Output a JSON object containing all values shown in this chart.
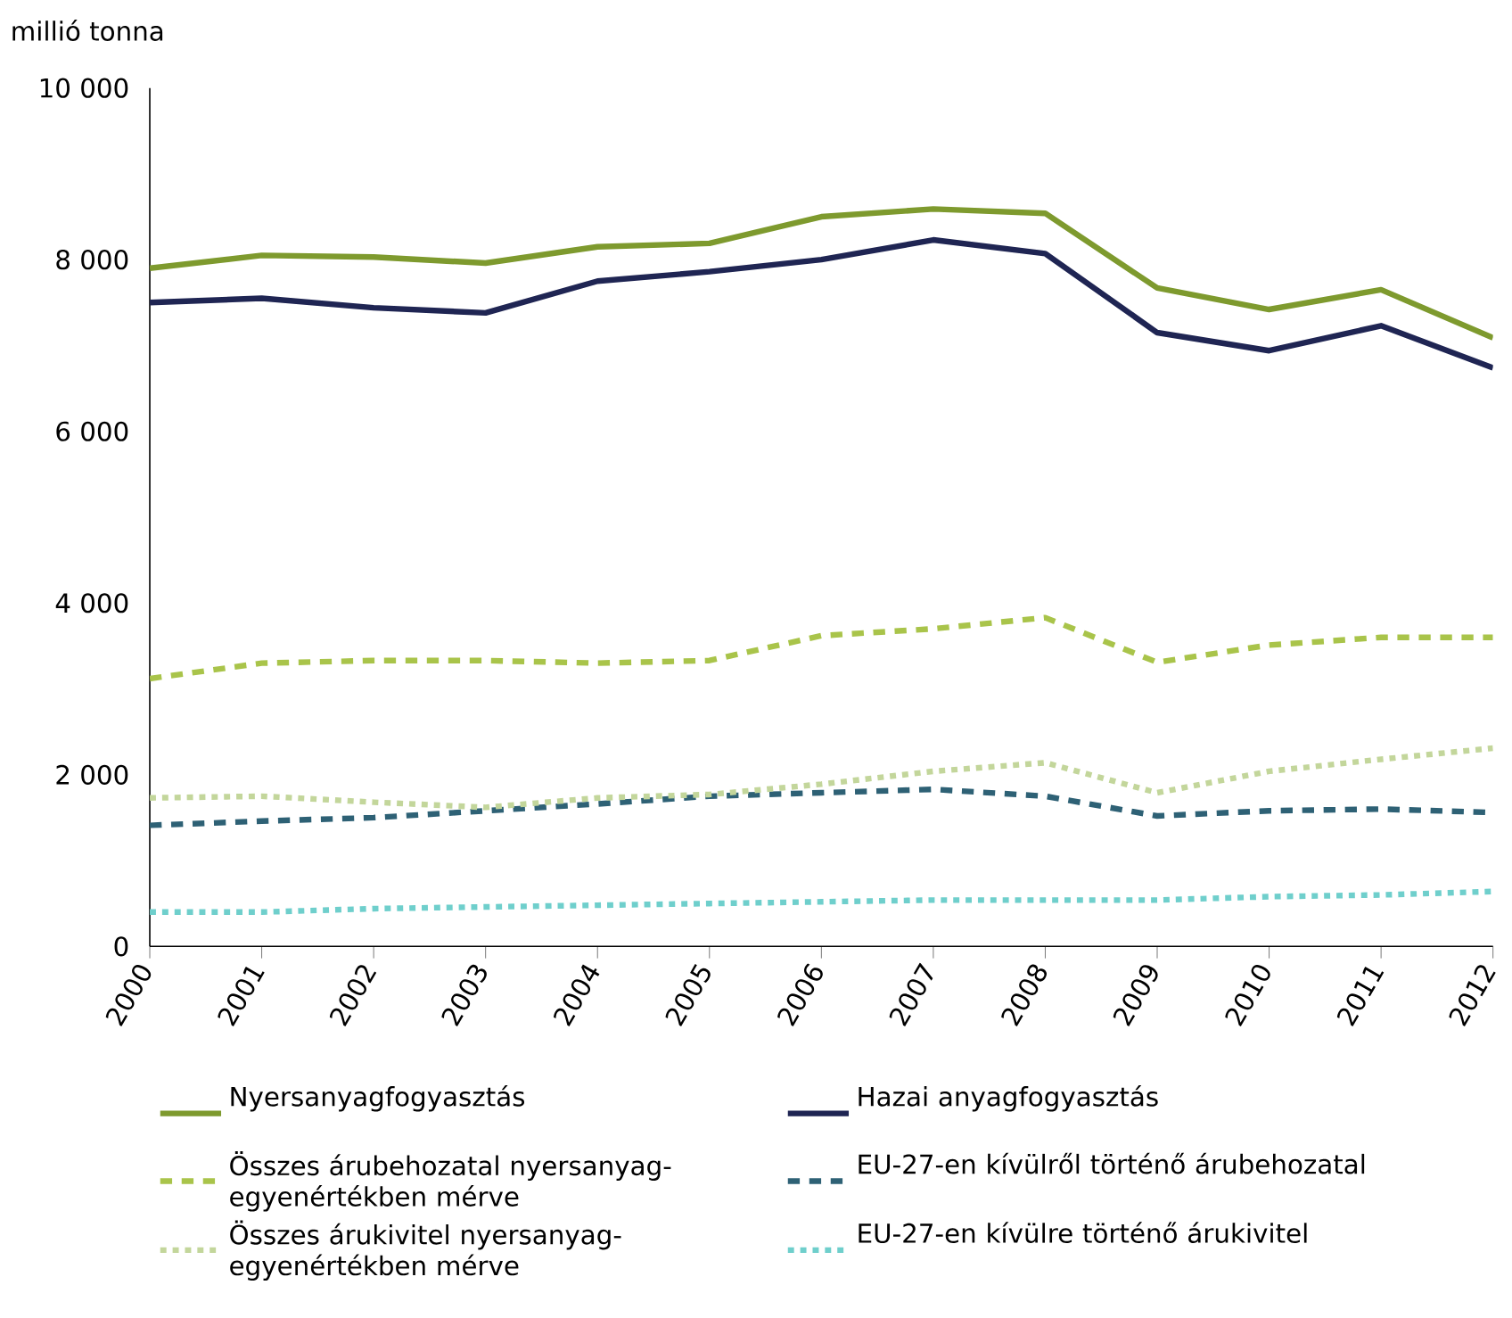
{
  "chart_data": {
    "type": "line",
    "ylabel": "millió tonna",
    "x": [
      2000,
      2001,
      2002,
      2003,
      2004,
      2005,
      2006,
      2007,
      2008,
      2009,
      2010,
      2011,
      2012
    ],
    "xlim": [
      2000,
      2012
    ],
    "xticks": [
      2000,
      2001,
      2002,
      2003,
      2004,
      2005,
      2006,
      2007,
      2008,
      2009,
      2010,
      2011,
      2012
    ],
    "ylim": [
      0,
      10000
    ],
    "yticks": [
      0,
      {
        "value": 2000,
        "label": "2 000"
      },
      {
        "value": 4000,
        "label": "4 000"
      },
      {
        "value": 6000,
        "label": "6 000"
      },
      {
        "value": 8000,
        "label": "8 000"
      },
      {
        "value": 10000,
        "label": "10 000"
      }
    ],
    "grid": false,
    "legend": "bottom",
    "marker": "none",
    "series": [
      {
        "name": "Nyersanyagfogyasztás",
        "color": "#7e9a2e",
        "line_style": "solid",
        "values": [
          7900,
          8050,
          8030,
          7960,
          8150,
          8190,
          8500,
          8590,
          8540,
          7670,
          7420,
          7650,
          7090
        ]
      },
      {
        "name": "Hazai anyagfogyasztás",
        "color": "#1f2553",
        "line_style": "solid",
        "values": [
          7500,
          7550,
          7440,
          7380,
          7750,
          7860,
          8000,
          8230,
          8070,
          7150,
          6940,
          7230,
          6740
        ]
      },
      {
        "name": "Összes árubehozatal nyersanyag-egyenértékben mérve",
        "color": "#a9c44a",
        "line_style": "dashed",
        "values": [
          3120,
          3300,
          3330,
          3330,
          3300,
          3330,
          3620,
          3700,
          3830,
          3310,
          3510,
          3600,
          3600
        ]
      },
      {
        "name": "EU-27-en kívülről történő árubehozatal",
        "color": "#2e6175",
        "line_style": "dashed",
        "values": [
          1410,
          1460,
          1500,
          1580,
          1660,
          1750,
          1790,
          1830,
          1750,
          1520,
          1580,
          1600,
          1560
        ]
      },
      {
        "name": "Összes árukivitel nyersanyag-egyenértékben mérve",
        "color": "#c3d69b",
        "line_style": "dotted",
        "values": [
          1730,
          1750,
          1680,
          1620,
          1730,
          1770,
          1890,
          2040,
          2140,
          1790,
          2040,
          2180,
          2310
        ]
      },
      {
        "name": "EU-27-en kívülre történő árukivitel",
        "color": "#6fcfcc",
        "line_style": "dotted",
        "values": [
          400,
          400,
          440,
          460,
          480,
          500,
          520,
          540,
          540,
          540,
          580,
          600,
          640
        ]
      }
    ]
  }
}
